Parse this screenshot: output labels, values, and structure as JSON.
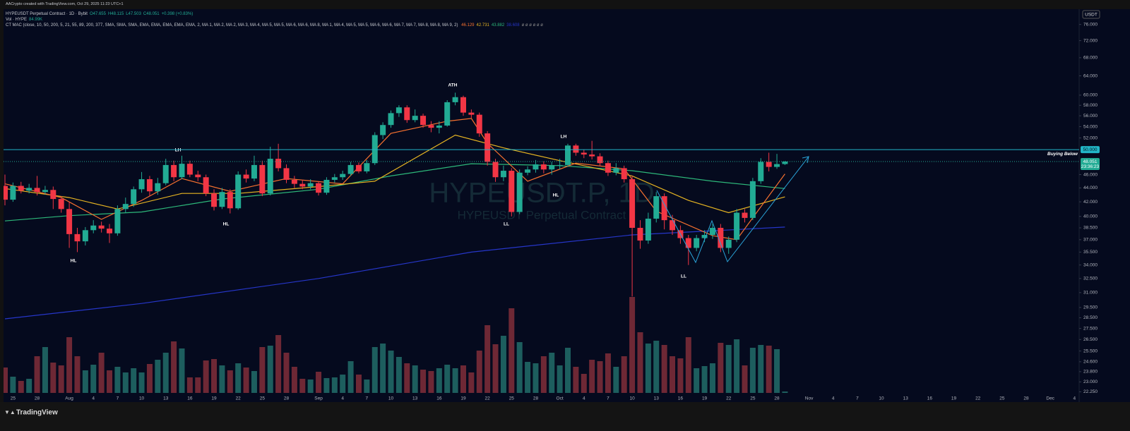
{
  "header": {
    "credit": "AACrypto created with TradingView.com, Oct 29, 2025 11:23 UTC+1",
    "symbol_line": "HYPEUSDT Perpetual Contract · 1D · Bybit",
    "ohlc": [
      "O47.655",
      "H48.115",
      "L47.503",
      "C48.051",
      "+0.398 (+0.83%)"
    ],
    "vol_label": "Vol · HYPE",
    "vol_value": "84.99K",
    "indicator_label": "CT MAC (close, 10, 50, 200, 5, 21, 55, 89, 200, 377, SMA, SMA, SMA, EMA, EMA, EMA, EMA, EMA, 2, MA 1, MA 2, MA 2, MA 3, MA 4, MA 5, MA 5, MA 6, MA 6, MA 8, MA 1, MA 4, MA 5, MA 5, MA 6, MA 6, MA 7, MA 7, MA 8, MA 8, MA 9, 2)",
    "indicator_values": [
      {
        "text": "46.129",
        "color": "#f7712f"
      },
      {
        "text": "42.731",
        "color": "#e6b422"
      },
      {
        "text": "43.882",
        "color": "#2db87a"
      },
      {
        "text": "38.608",
        "color": "#2636c9"
      }
    ],
    "indicator_empty": "ø ø ø ø ø ø",
    "currency": "USDT"
  },
  "chart_data": {
    "type": "candlestick",
    "log_scale": true,
    "grid": false,
    "up_color": "#22ab94",
    "down_color": "#f23645",
    "volume_up_color": "#1d5e5e",
    "volume_down_color": "#6e2835",
    "xlim": [
      "2025-07-24",
      "2025-12-05"
    ],
    "ylim": [
      21.6,
      79.8
    ],
    "volume_lim": [
      0,
      160
    ],
    "yticks": [
      {
        "value": 76,
        "label": "76.000"
      },
      {
        "value": 72,
        "label": "72.000"
      },
      {
        "value": 68,
        "label": "68.000"
      },
      {
        "value": 64,
        "label": "64.000"
      },
      {
        "value": 60,
        "label": "60.000"
      },
      {
        "value": 58,
        "label": "58.000"
      },
      {
        "value": 56,
        "label": "56.000"
      },
      {
        "value": 54,
        "label": "54.000"
      },
      {
        "value": 52,
        "label": "52.000"
      },
      {
        "value": 46,
        "label": "46.000"
      },
      {
        "value": 44,
        "label": "44.000"
      },
      {
        "value": 42,
        "label": "42.000"
      },
      {
        "value": 40,
        "label": "40.000"
      },
      {
        "value": 38.5,
        "label": "38.500"
      },
      {
        "value": 37,
        "label": "37.000"
      },
      {
        "value": 35.5,
        "label": "35.500"
      },
      {
        "value": 34,
        "label": "34.000"
      },
      {
        "value": 32.5,
        "label": "32.500"
      },
      {
        "value": 31,
        "label": "31.000"
      },
      {
        "value": 29.5,
        "label": "29.500"
      },
      {
        "value": 28.5,
        "label": "28.500"
      },
      {
        "value": 27.5,
        "label": "27.500"
      },
      {
        "value": 26.5,
        "label": "26.500"
      },
      {
        "value": 25.5,
        "label": "25.500"
      },
      {
        "value": 24.6,
        "label": "24.600"
      },
      {
        "value": 23.8,
        "label": "23.800"
      },
      {
        "value": 23,
        "label": "23.000"
      },
      {
        "value": 22.25,
        "label": "22.250"
      }
    ],
    "xticks": [
      {
        "value": "2025-07-25",
        "label": "25"
      },
      {
        "value": "2025-07-28",
        "label": "28"
      },
      {
        "value": "2025-08-01",
        "label": "Aug"
      },
      {
        "value": "2025-08-04",
        "label": "4"
      },
      {
        "value": "2025-08-07",
        "label": "7"
      },
      {
        "value": "2025-08-10",
        "label": "10"
      },
      {
        "value": "2025-08-13",
        "label": "13"
      },
      {
        "value": "2025-08-16",
        "label": "16"
      },
      {
        "value": "2025-08-19",
        "label": "19"
      },
      {
        "value": "2025-08-22",
        "label": "22"
      },
      {
        "value": "2025-08-25",
        "label": "25"
      },
      {
        "value": "2025-08-28",
        "label": "28"
      },
      {
        "value": "2025-09-01",
        "label": "Sep"
      },
      {
        "value": "2025-09-04",
        "label": "4"
      },
      {
        "value": "2025-09-07",
        "label": "7"
      },
      {
        "value": "2025-09-10",
        "label": "10"
      },
      {
        "value": "2025-09-13",
        "label": "13"
      },
      {
        "value": "2025-09-16",
        "label": "16"
      },
      {
        "value": "2025-09-19",
        "label": "19"
      },
      {
        "value": "2025-09-22",
        "label": "22"
      },
      {
        "value": "2025-09-25",
        "label": "25"
      },
      {
        "value": "2025-09-28",
        "label": "28"
      },
      {
        "value": "2025-10-01",
        "label": "Oct"
      },
      {
        "value": "2025-10-04",
        "label": "4"
      },
      {
        "value": "2025-10-07",
        "label": "7"
      },
      {
        "value": "2025-10-10",
        "label": "10"
      },
      {
        "value": "2025-10-13",
        "label": "13"
      },
      {
        "value": "2025-10-16",
        "label": "16"
      },
      {
        "value": "2025-10-19",
        "label": "19"
      },
      {
        "value": "2025-10-22",
        "label": "22"
      },
      {
        "value": "2025-10-25",
        "label": "25"
      },
      {
        "value": "2025-10-28",
        "label": "28"
      },
      {
        "value": "2025-11-01",
        "label": "Nov"
      },
      {
        "value": "2025-11-04",
        "label": "4"
      },
      {
        "value": "2025-11-07",
        "label": "7"
      },
      {
        "value": "2025-11-10",
        "label": "10"
      },
      {
        "value": "2025-11-13",
        "label": "13"
      },
      {
        "value": "2025-11-16",
        "label": "16"
      },
      {
        "value": "2025-11-19",
        "label": "19"
      },
      {
        "value": "2025-11-22",
        "label": "22"
      },
      {
        "value": "2025-11-25",
        "label": "25"
      },
      {
        "value": "2025-11-28",
        "label": "28"
      },
      {
        "value": "2025-12-01",
        "label": "Dec"
      },
      {
        "value": "2025-12-04",
        "label": "4"
      }
    ],
    "x": [
      "2025-07-24",
      "2025-07-25",
      "2025-07-26",
      "2025-07-27",
      "2025-07-28",
      "2025-07-29",
      "2025-07-30",
      "2025-07-31",
      "2025-08-01",
      "2025-08-02",
      "2025-08-03",
      "2025-08-04",
      "2025-08-05",
      "2025-08-06",
      "2025-08-07",
      "2025-08-08",
      "2025-08-09",
      "2025-08-10",
      "2025-08-11",
      "2025-08-12",
      "2025-08-13",
      "2025-08-14",
      "2025-08-15",
      "2025-08-16",
      "2025-08-17",
      "2025-08-18",
      "2025-08-19",
      "2025-08-20",
      "2025-08-21",
      "2025-08-22",
      "2025-08-23",
      "2025-08-24",
      "2025-08-25",
      "2025-08-26",
      "2025-08-27",
      "2025-08-28",
      "2025-08-29",
      "2025-08-30",
      "2025-08-31",
      "2025-09-01",
      "2025-09-02",
      "2025-09-03",
      "2025-09-04",
      "2025-09-05",
      "2025-09-06",
      "2025-09-07",
      "2025-09-08",
      "2025-09-09",
      "2025-09-10",
      "2025-09-11",
      "2025-09-12",
      "2025-09-13",
      "2025-09-14",
      "2025-09-15",
      "2025-09-16",
      "2025-09-17",
      "2025-09-18",
      "2025-09-19",
      "2025-09-20",
      "2025-09-21",
      "2025-09-22",
      "2025-09-23",
      "2025-09-24",
      "2025-09-25",
      "2025-09-26",
      "2025-09-27",
      "2025-09-28",
      "2025-09-29",
      "2025-09-30",
      "2025-10-01",
      "2025-10-02",
      "2025-10-03",
      "2025-10-04",
      "2025-10-05",
      "2025-10-06",
      "2025-10-07",
      "2025-10-08",
      "2025-10-09",
      "2025-10-10",
      "2025-10-11",
      "2025-10-12",
      "2025-10-13",
      "2025-10-14",
      "2025-10-15",
      "2025-10-16",
      "2025-10-17",
      "2025-10-18",
      "2025-10-19",
      "2025-10-20",
      "2025-10-21",
      "2025-10-22",
      "2025-10-23",
      "2025-10-24",
      "2025-10-25",
      "2025-10-26",
      "2025-10-27",
      "2025-10-28",
      "2025-10-29"
    ],
    "open": [
      44.3,
      42.3,
      44.3,
      43.6,
      44.0,
      43.4,
      43.7,
      42.4,
      41.0,
      37.7,
      36.8,
      38.2,
      38.8,
      38.4,
      37.8,
      41.0,
      41.7,
      43.8,
      45.3,
      43.5,
      44.7,
      47.5,
      45.6,
      47.7,
      46.0,
      45.6,
      43.2,
      41.3,
      43.4,
      41.1,
      46.0,
      45.4,
      47.5,
      43.2,
      48.5,
      47.0,
      45.2,
      44.6,
      44.2,
      44.7,
      43.3,
      45.2,
      45.6,
      46.1,
      47.5,
      46.5,
      47.8,
      52.5,
      54.3,
      56.5,
      57.6,
      55.2,
      56.0,
      54.3,
      53.8,
      54.2,
      58.6,
      59.6,
      56.6,
      56.2,
      52.8,
      48.0,
      45.6,
      46.6,
      40.6,
      46.3,
      46.8,
      47.6,
      46.8,
      47.4,
      47.5,
      50.7,
      49.5,
      49.2,
      48.9,
      47.8,
      46.3,
      47.0,
      45.3,
      38.5,
      36.9,
      39.7,
      42.8,
      39.5,
      38.2,
      37.2,
      36.0,
      37.2,
      37.6,
      38.5,
      36.0,
      37.0,
      40.5,
      39.8,
      45.0,
      48.0,
      47.2,
      47.655
    ],
    "high": [
      46.0,
      44.8,
      44.9,
      44.6,
      45.8,
      44.3,
      44.2,
      42.8,
      42.0,
      38.5,
      38.6,
      39.5,
      39.3,
      39.0,
      41.5,
      42.6,
      44.2,
      46.4,
      45.8,
      45.5,
      48.5,
      48.2,
      49.0,
      48.2,
      46.6,
      46.0,
      43.8,
      44.0,
      43.8,
      46.5,
      46.8,
      49.0,
      48.2,
      50.5,
      51.0,
      47.6,
      45.8,
      45.2,
      45.3,
      45.0,
      45.6,
      46.1,
      46.6,
      48.0,
      47.9,
      48.3,
      53.0,
      54.8,
      57.0,
      58.0,
      58.0,
      57.2,
      56.4,
      55.0,
      55.0,
      59.0,
      60.5,
      59.9,
      57.2,
      56.6,
      53.2,
      48.5,
      47.4,
      47.0,
      46.8,
      47.3,
      48.3,
      48.1,
      48.0,
      48.5,
      51.0,
      51.0,
      50.0,
      51.5,
      49.4,
      48.2,
      47.8,
      47.4,
      45.8,
      39.5,
      40.5,
      43.4,
      43.2,
      40.2,
      38.8,
      37.6,
      37.6,
      38.2,
      39.0,
      39.0,
      37.4,
      41.0,
      41.0,
      45.5,
      48.6,
      49.5,
      49.3,
      48.115
    ],
    "low": [
      41.5,
      42.0,
      43.2,
      43.2,
      42.9,
      43.0,
      41.0,
      40.5,
      36.0,
      35.5,
      36.3,
      37.8,
      37.9,
      36.6,
      37.5,
      40.5,
      41.3,
      43.3,
      42.8,
      43.0,
      44.4,
      45.0,
      45.3,
      45.6,
      45.0,
      42.8,
      40.8,
      41.0,
      40.4,
      40.9,
      44.8,
      45.0,
      42.8,
      42.9,
      46.5,
      44.7,
      44.0,
      43.8,
      43.8,
      42.9,
      43.0,
      44.8,
      45.2,
      45.8,
      46.2,
      46.2,
      47.5,
      51.8,
      53.8,
      55.8,
      54.7,
      54.8,
      53.8,
      53.0,
      52.8,
      54.0,
      58.0,
      56.0,
      55.6,
      52.2,
      47.4,
      44.9,
      45.0,
      40.0,
      40.3,
      45.9,
      46.3,
      46.2,
      46.0,
      46.8,
      47.2,
      49.0,
      48.6,
      48.4,
      47.3,
      45.8,
      45.9,
      44.8,
      30.6,
      35.9,
      36.5,
      39.2,
      38.3,
      37.6,
      36.5,
      34.0,
      35.6,
      36.7,
      37.1,
      35.5,
      35.3,
      36.7,
      39.2,
      39.5,
      44.6,
      46.5,
      46.9,
      47.503
    ],
    "close": [
      42.3,
      44.3,
      43.6,
      44.0,
      43.4,
      43.7,
      42.4,
      41.0,
      37.7,
      36.8,
      38.2,
      38.8,
      38.4,
      37.8,
      41.0,
      41.7,
      43.8,
      45.3,
      43.5,
      44.7,
      47.5,
      45.6,
      47.7,
      46.0,
      45.6,
      43.2,
      41.3,
      43.4,
      41.1,
      46.0,
      45.4,
      47.5,
      43.2,
      48.5,
      47.0,
      45.2,
      44.6,
      44.2,
      44.7,
      43.3,
      45.2,
      45.6,
      46.1,
      47.5,
      46.5,
      47.8,
      52.5,
      54.3,
      56.5,
      57.6,
      55.2,
      56.0,
      54.3,
      53.8,
      54.2,
      58.6,
      59.6,
      56.6,
      56.2,
      52.8,
      48.0,
      45.6,
      46.6,
      40.6,
      46.3,
      46.8,
      47.6,
      46.8,
      47.4,
      47.5,
      50.7,
      49.5,
      49.2,
      48.9,
      47.8,
      46.3,
      47.0,
      45.3,
      38.5,
      36.9,
      39.7,
      42.8,
      39.5,
      38.2,
      37.2,
      36.0,
      37.2,
      37.6,
      38.5,
      36.0,
      37.0,
      40.5,
      39.8,
      45.0,
      48.0,
      47.2,
      47.653,
      48.051
    ],
    "volume": [
      36,
      23,
      17,
      20,
      52,
      65,
      43,
      39,
      79,
      52,
      32,
      40,
      57,
      32,
      37,
      29,
      35,
      29,
      41,
      47,
      57,
      73,
      63,
      22,
      22,
      46,
      48,
      39,
      32,
      42,
      36,
      31,
      65,
      67,
      82,
      57,
      37,
      20,
      19,
      30,
      21,
      22,
      26,
      45,
      26,
      19,
      65,
      70,
      60,
      51,
      42,
      39,
      33,
      31,
      35,
      40,
      35,
      39,
      29,
      60,
      96,
      69,
      81,
      120,
      72,
      44,
      42,
      52,
      57,
      39,
      64,
      37,
      27,
      47,
      45,
      56,
      37,
      52,
      136,
      86,
      70,
      74,
      68,
      52,
      49,
      79,
      35,
      38,
      42,
      71,
      68,
      76,
      39,
      64,
      68,
      67,
      62,
      2
    ],
    "series": [
      {
        "color": "#2636c9",
        "x": [
          "2025-07-24",
          "2025-08-10",
          "2025-09-01",
          "2025-09-20",
          "2025-10-10",
          "2025-10-29"
        ],
        "values": [
          28.4,
          29.9,
          32.5,
          35.5,
          37.6,
          38.6
        ]
      },
      {
        "color": "#2db87a",
        "x": [
          "2025-07-24",
          "2025-08-01",
          "2025-08-10",
          "2025-08-20",
          "2025-09-01",
          "2025-09-10",
          "2025-09-20",
          "2025-10-01",
          "2025-10-10",
          "2025-10-20",
          "2025-10-29"
        ],
        "values": [
          39.4,
          40.1,
          40.6,
          42.4,
          43.8,
          45.8,
          47.7,
          47.4,
          46.6,
          45.0,
          43.9
        ]
      },
      {
        "color": "#e6b422",
        "x": [
          "2025-07-24",
          "2025-08-01",
          "2025-08-07",
          "2025-08-15",
          "2025-08-22",
          "2025-09-01",
          "2025-09-08",
          "2025-09-18",
          "2025-09-24",
          "2025-10-01",
          "2025-10-10",
          "2025-10-17",
          "2025-10-22",
          "2025-10-29"
        ],
        "values": [
          43.9,
          42.6,
          41.0,
          43.2,
          43.2,
          44.2,
          45.0,
          52.5,
          50.3,
          48.2,
          45.8,
          42.2,
          40.5,
          42.7
        ]
      },
      {
        "color": "#f7712f",
        "x": [
          "2025-07-24",
          "2025-07-31",
          "2025-08-05",
          "2025-08-10",
          "2025-08-15",
          "2025-08-21",
          "2025-08-28",
          "2025-09-04",
          "2025-09-10",
          "2025-09-17",
          "2025-09-20",
          "2025-09-22",
          "2025-09-27",
          "2025-10-03",
          "2025-10-09",
          "2025-10-13",
          "2025-10-20",
          "2025-10-23",
          "2025-10-29"
        ],
        "values": [
          44.6,
          42.6,
          39.6,
          42.2,
          45.4,
          43.5,
          45.4,
          44.6,
          52.8,
          55.0,
          55.5,
          51.1,
          45.0,
          47.8,
          46.9,
          40.7,
          37.5,
          37.0,
          46.1
        ]
      }
    ],
    "hlines": [
      {
        "value": 50,
        "label": "Buying Below",
        "axis_label": "50.000",
        "color": "#22b5c8"
      }
    ],
    "last_price": {
      "value": 48.051,
      "label": "48.051",
      "countdown": "23:36:23",
      "color": "#22ab94"
    },
    "annotations": [
      "ATH",
      "LH",
      "HL",
      "HL",
      "LH",
      "HL",
      "LL",
      "LL"
    ],
    "watermark": {
      "title": "HYPEUSDT.P, 1D",
      "subtitle": "HYPEUSDT Perpetual Contract"
    }
  },
  "footer": {
    "brand": "TradingView"
  }
}
